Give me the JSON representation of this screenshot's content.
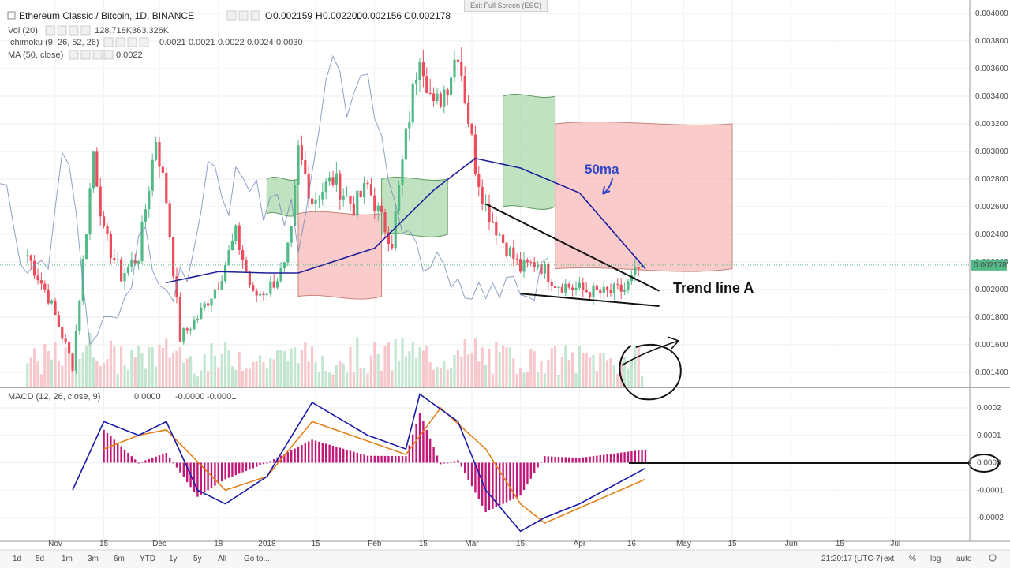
{
  "legend": {
    "symbol": "Ethereum Classic / Bitcoin, 1D, BINANCE",
    "ohlc": [
      {
        "k": "O",
        "v": "0.002159"
      },
      {
        "k": "H",
        "v": "0.002200"
      },
      {
        "k": "L",
        "v": "0.002156"
      },
      {
        "k": "C",
        "v": "0.002178"
      }
    ],
    "vol_label": "Vol (20)",
    "vol_values": [
      "128.718K",
      "363.326K"
    ],
    "ichimoku_label": "Ichimoku (9, 26, 52, 26)",
    "ichimoku_values": [
      "0.0021",
      "0.0021",
      "0.0022",
      "0.0024",
      "0.0030"
    ],
    "ma_label": "MA (50, close)",
    "ma_value": "0.0022",
    "macd_label": "MACD (12, 26, close, 9)",
    "macd_values": [
      "0.0000",
      "-0.0000",
      "-0.0001"
    ]
  },
  "exit_fullscreen": "Exit Full Screen (ESC)",
  "annotations": {
    "ma": "50ma",
    "trend": "Trend line A"
  },
  "price_axis": {
    "ticks": [
      "0.004000",
      "0.003800",
      "0.003600",
      "0.003400",
      "0.003200",
      "0.003000",
      "0.002800",
      "0.002600",
      "0.002400",
      "0.002200",
      "0.002000",
      "0.001800",
      "0.001600",
      "0.001400"
    ],
    "last_price": "0.002178"
  },
  "macd_axis": {
    "ticks": [
      "0.0002",
      "0.0001",
      "0.0000",
      "-0.0001",
      "-0.0002"
    ]
  },
  "time_axis": [
    "Nov",
    "15",
    "Dec",
    "18",
    "2018",
    "15",
    "Feb",
    "15",
    "Mar",
    "15",
    "Apr",
    "16",
    "May",
    "15",
    "Jun",
    "15",
    "Jul"
  ],
  "toolbar": {
    "timeframes": [
      "1d",
      "5d",
      "1m",
      "3m",
      "6m",
      "YTD",
      "1y",
      "5y",
      "All"
    ],
    "goto": "Go to...",
    "clock": "21:20:17 (UTC-7)",
    "options": [
      "ext",
      "%",
      "log",
      "auto"
    ]
  },
  "colors": {
    "up": "#53b987",
    "down": "#eb4d5c",
    "ma": "#1f1f9a",
    "ichimoku_line": "#6f89b8",
    "cloud_green": "#a5d6a7",
    "cloud_red": "#f7b5b5",
    "macd_line": "#1a1aa8",
    "signal_line": "#e2801a",
    "histogram": "#c2187a",
    "annotation_blue": "#3446c4"
  },
  "chart_data": {
    "type": "candlestick",
    "title": "Ethereum Classic / Bitcoin, 1D, BINANCE",
    "price_range": [
      0.00128,
      0.00405
    ],
    "price_points": [
      [
        "Oct 24",
        0.00225
      ],
      [
        "Oct 30",
        0.00195
      ],
      [
        "Nov 06",
        0.00145
      ],
      [
        "Nov 10",
        0.00245
      ],
      [
        "Nov 12",
        0.003
      ],
      [
        "Nov 15",
        0.0024
      ],
      [
        "Nov 20",
        0.0021
      ],
      [
        "Nov 25",
        0.00225
      ],
      [
        "Nov 30",
        0.0031
      ],
      [
        "Dec 03",
        0.00265
      ],
      [
        "Dec 07",
        0.00165
      ],
      [
        "Dec 12",
        0.0018
      ],
      [
        "Dec 18",
        0.00205
      ],
      [
        "Dec 23",
        0.0024
      ],
      [
        "Dec 28",
        0.00195
      ],
      [
        "Jan 01",
        0.002
      ],
      [
        "Jan 06",
        0.00215
      ],
      [
        "Jan 08",
        0.0024
      ],
      [
        "Jan 10",
        0.003
      ],
      [
        "Jan 14",
        0.00265
      ],
      [
        "Jan 20",
        0.0028
      ],
      [
        "Jan 26",
        0.0026
      ],
      [
        "Jan 30",
        0.00275
      ],
      [
        "Feb 03",
        0.0025
      ],
      [
        "Feb 06",
        0.00235
      ],
      [
        "Feb 10",
        0.0031
      ],
      [
        "Feb 14",
        0.00375
      ],
      [
        "Feb 18",
        0.0033
      ],
      [
        "Feb 22",
        0.0035
      ],
      [
        "Feb 25",
        0.00375
      ],
      [
        "Mar 02",
        0.0029
      ],
      [
        "Mar 05",
        0.0026
      ],
      [
        "Mar 10",
        0.00235
      ],
      [
        "Mar 15",
        0.00215
      ],
      [
        "Mar 20",
        0.0022
      ],
      [
        "Mar 25",
        0.00205
      ],
      [
        "Apr 01",
        0.002
      ],
      [
        "Apr 08",
        0.00197
      ],
      [
        "Apr 14",
        0.002
      ],
      [
        "Apr 19",
        0.00218
      ]
    ],
    "last_ohlc": {
      "open": 0.002159,
      "high": 0.0022,
      "low": 0.002156,
      "close": 0.002178
    },
    "ma50": [
      [
        "Dec 03",
        0.00205
      ],
      [
        "Dec 18",
        0.00213
      ],
      [
        "Jan 01",
        0.00212
      ],
      [
        "Jan 10",
        0.00212
      ],
      [
        "Feb 01",
        0.0023
      ],
      [
        "Feb 18",
        0.00272
      ],
      [
        "Mar 02",
        0.00295
      ],
      [
        "Mar 15",
        0.00288
      ],
      [
        "Apr 01",
        0.0027
      ],
      [
        "Apr 20",
        0.00215
      ]
    ],
    "cloud": [
      {
        "from": "Jan 01",
        "to": "Jan 10",
        "color": "green",
        "top": 0.0028,
        "bottom": 0.00255
      },
      {
        "from": "Jan 10",
        "to": "Feb 03",
        "color": "red",
        "top": 0.00255,
        "bottom": 0.00195
      },
      {
        "from": "Feb 03",
        "to": "Feb 22",
        "color": "green",
        "top": 0.0028,
        "bottom": 0.0024
      },
      {
        "from": "Mar 10",
        "to": "Mar 25",
        "color": "green",
        "top": 0.0034,
        "bottom": 0.0026
      },
      {
        "from": "Mar 25",
        "to": "May 15",
        "color": "red",
        "top": 0.0032,
        "bottom": 0.00215
      }
    ],
    "trend_lines": [
      {
        "from": [
          "Mar 05",
          0.00262
        ],
        "to": [
          "Apr 24",
          0.00199
        ]
      },
      {
        "from": [
          "Mar 15",
          0.00197
        ],
        "to": [
          "Apr 24",
          0.00188
        ]
      }
    ],
    "macd": {
      "range": [
        -0.00025,
        0.00027
      ],
      "macd_line": [
        [
          "Nov 06",
          -0.0001
        ],
        [
          "Nov 15",
          0.00015
        ],
        [
          "Nov 25",
          0.0001
        ],
        [
          "Dec 03",
          0.00015
        ],
        [
          "Dec 12",
          -0.0001
        ],
        [
          "Dec 20",
          -0.00015
        ],
        [
          "Jan 01",
          -5e-05
        ],
        [
          "Jan 14",
          0.00022
        ],
        [
          "Jan 30",
          0.0001
        ],
        [
          "Feb 10",
          5e-05
        ],
        [
          "Feb 14",
          0.00025
        ],
        [
          "Feb 25",
          0.00015
        ],
        [
          "Mar 05",
          -0.0001
        ],
        [
          "Mar 15",
          -0.00025
        ],
        [
          "Mar 22",
          -0.0002
        ],
        [
          "Apr 01",
          -0.00015
        ],
        [
          "Apr 20",
          -2e-05
        ]
      ],
      "signal_line": [
        [
          "Nov 15",
          5e-05
        ],
        [
          "Nov 25",
          0.0001
        ],
        [
          "Dec 03",
          0.00012
        ],
        [
          "Dec 20",
          -0.0001
        ],
        [
          "Jan 01",
          -5e-05
        ],
        [
          "Jan 14",
          0.00015
        ],
        [
          "Feb 10",
          3e-05
        ],
        [
          "Feb 20",
          0.0002
        ],
        [
          "Mar 05",
          5e-05
        ],
        [
          "Mar 15",
          -0.00015
        ],
        [
          "Mar 22",
          -0.00022
        ],
        [
          "Apr 20",
          -6e-05
        ]
      ],
      "histogram_note_level": 0.0
    },
    "xlabel": "",
    "ylabel": ""
  }
}
